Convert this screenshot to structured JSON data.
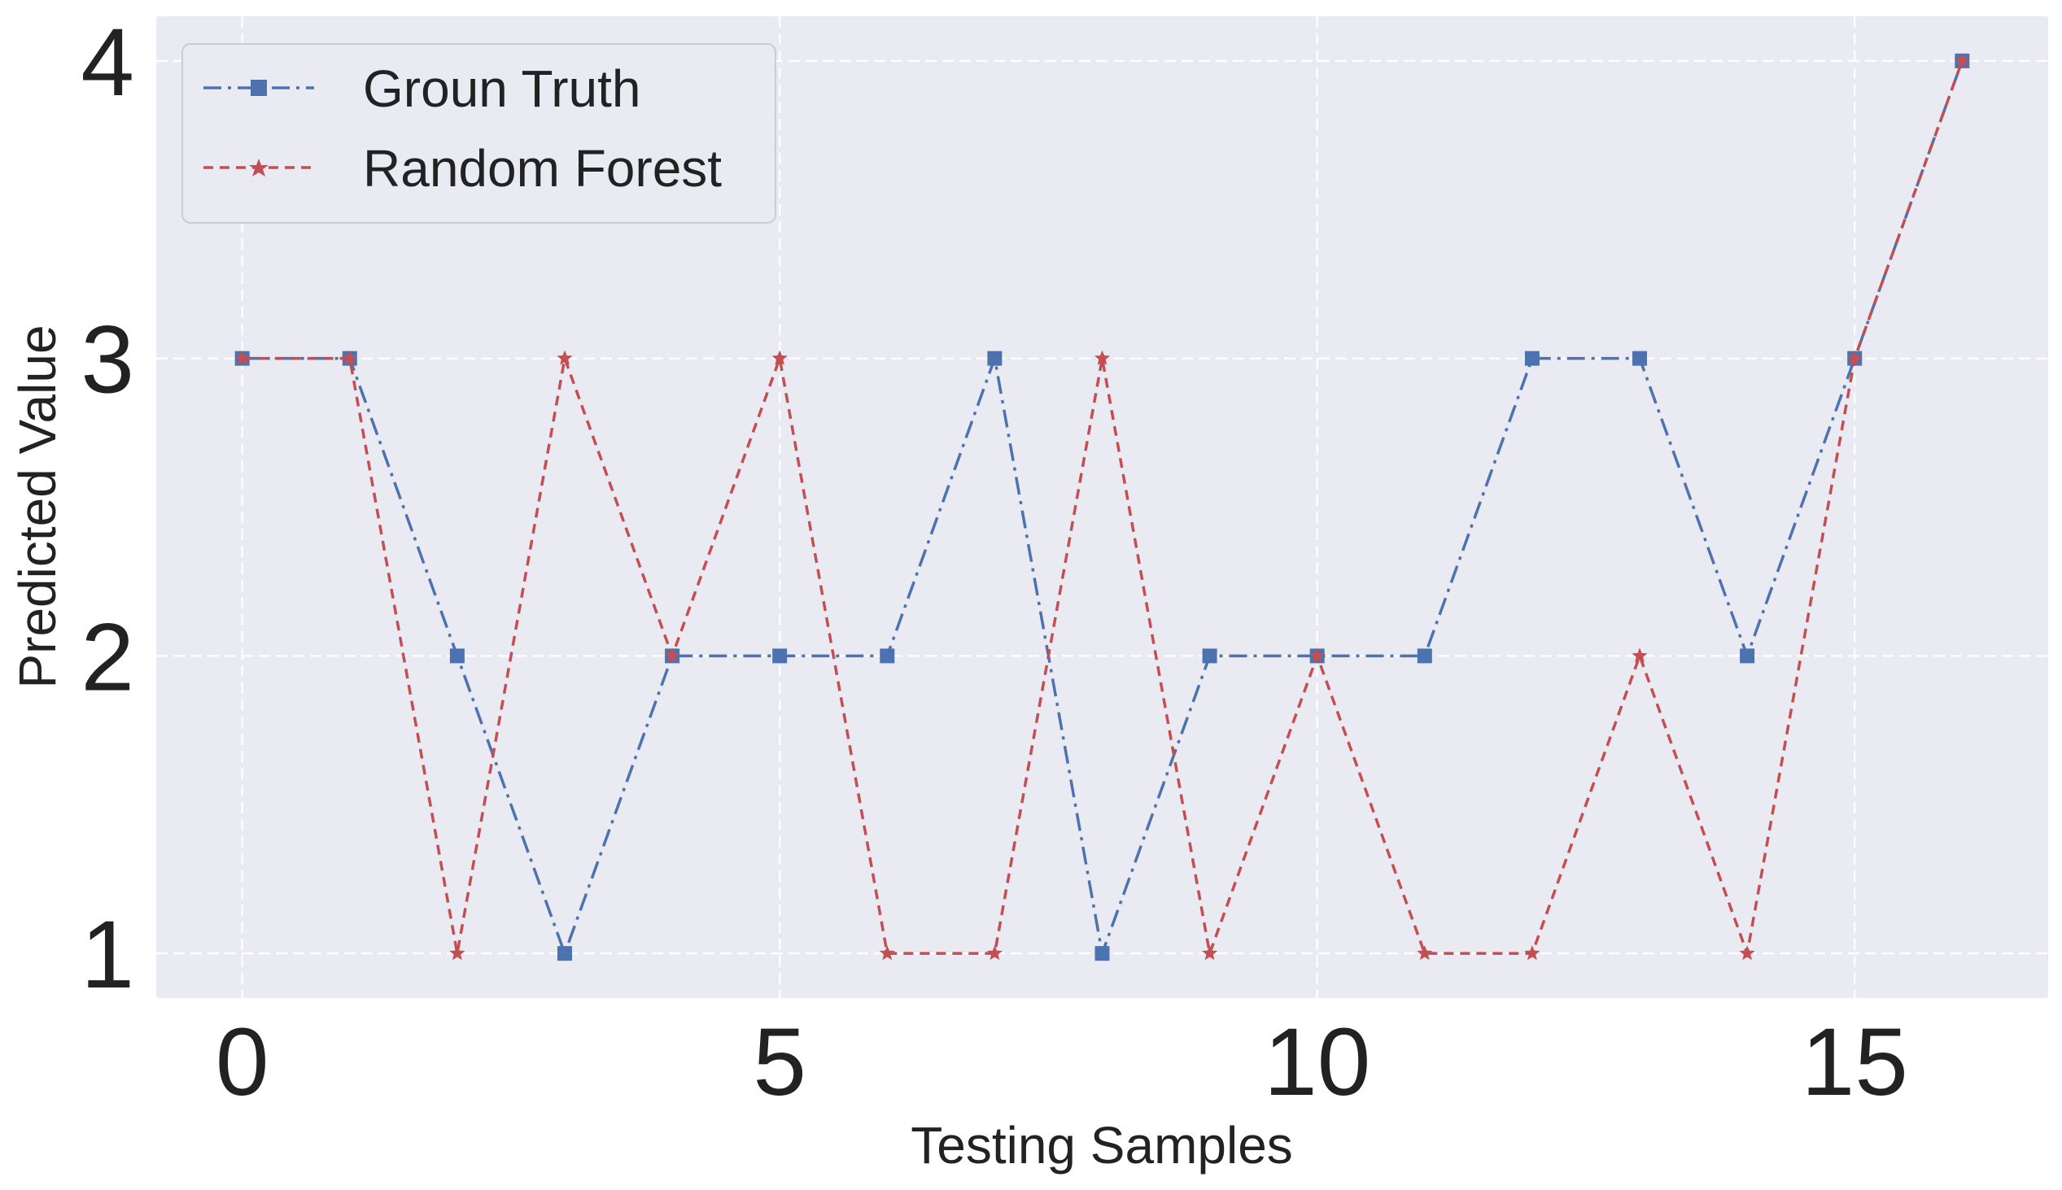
{
  "chart_data": {
    "type": "line",
    "title": "",
    "xlabel": "Testing Samples",
    "ylabel": "Predicted Value",
    "x": [
      0,
      1,
      2,
      3,
      4,
      5,
      6,
      7,
      8,
      9,
      10,
      11,
      12,
      13,
      14,
      15,
      16
    ],
    "xlim": [
      -0.8,
      16.8
    ],
    "ylim": [
      0.85,
      4.15
    ],
    "xticks": [
      0,
      5,
      10,
      15
    ],
    "xtick_labels": [
      "0",
      "5",
      "10",
      "15"
    ],
    "yticks": [
      1,
      2,
      3,
      4
    ],
    "ytick_labels": [
      "1",
      "2",
      "3",
      "4"
    ],
    "grid": true,
    "legend_position": "top-left",
    "background_color": "#eaeaf2",
    "series": [
      {
        "name": "Groun Truth",
        "color": "#4c72b0",
        "marker": "square",
        "line_style": "dash-dot",
        "values": [
          3,
          3,
          2,
          1,
          2,
          2,
          2,
          3,
          1,
          2,
          2,
          2,
          3,
          3,
          2,
          3,
          4
        ]
      },
      {
        "name": "Random Forest",
        "color": "#c44e52",
        "marker": "star",
        "line_style": "dashed",
        "values": [
          3,
          3,
          1,
          3,
          2,
          3,
          1,
          1,
          3,
          1,
          2,
          1,
          1,
          2,
          1,
          3,
          4
        ]
      }
    ]
  }
}
